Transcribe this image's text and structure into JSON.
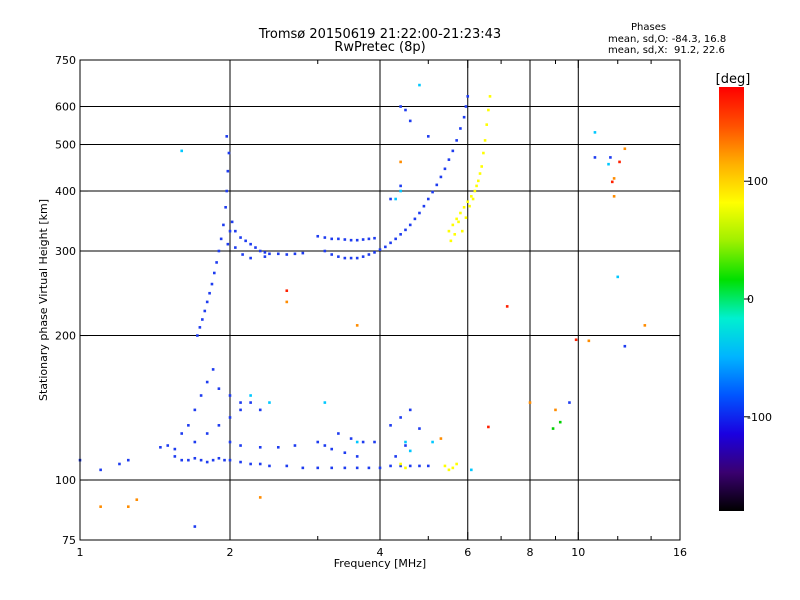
{
  "header": {
    "title_line1": "Tromsø 20150619 21:22:00-21:23:43",
    "title_line2": "RwPretec (8p)",
    "phases_heading": "Phases",
    "stats_o": "mean, sd,O: -84.3, 16.8",
    "stats_x": "mean, sd,X:  91.2, 22.6"
  },
  "chart_data": {
    "type": "scatter",
    "title": "Tromsø 20150619 21:22:00-21:23:43",
    "subtitle": "RwPretec (8p)",
    "xlabel": "Frequency [MHz]",
    "ylabel": "Stationary phase Virtual Height [km]",
    "x_scale": "log",
    "y_scale": "log",
    "xlim": [
      1,
      16
    ],
    "ylim": [
      75,
      750
    ],
    "x_ticks": [
      1,
      2,
      4,
      6,
      8,
      10,
      16
    ],
    "x_tick_labels": [
      "1",
      "2",
      "4",
      "6",
      "8",
      "10",
      "16"
    ],
    "x_minor_ticks": [
      3,
      5,
      7,
      9,
      12,
      14
    ],
    "x_gridlines": [
      2,
      4,
      6,
      8,
      10
    ],
    "y_ticks": [
      75,
      100,
      200,
      300,
      400,
      500,
      600,
      750
    ],
    "y_tick_labels": [
      "75",
      "100",
      "200",
      "300",
      "400",
      "500",
      "600",
      "750"
    ],
    "y_gridlines": [
      100,
      200,
      300,
      400,
      500,
      600
    ],
    "grid": true,
    "colorbar": {
      "label": "[deg]",
      "range": [
        -180,
        180
      ],
      "ticks": [
        100,
        0,
        -100
      ],
      "tick_labels": [
        "100",
        "0",
        "-100"
      ],
      "colormap": [
        "#000000",
        "#3a0070",
        "#1a00e0",
        "#0055ff",
        "#00b4ff",
        "#00f0d0",
        "#00e000",
        "#9ef000",
        "#ffff00",
        "#ffb000",
        "#ff5000",
        "#ff0000"
      ]
    },
    "series": [
      {
        "color": "#1e3cf0",
        "points": [
          [
            1.72,
            200
          ],
          [
            1.74,
            208
          ],
          [
            1.76,
            216
          ],
          [
            1.78,
            225
          ],
          [
            1.8,
            235
          ],
          [
            1.82,
            245
          ],
          [
            1.84,
            256
          ],
          [
            1.86,
            270
          ],
          [
            1.88,
            284
          ],
          [
            1.9,
            300
          ],
          [
            1.92,
            318
          ],
          [
            1.94,
            340
          ],
          [
            1.96,
            370
          ],
          [
            1.97,
            400
          ],
          [
            1.98,
            440
          ],
          [
            1.99,
            480
          ],
          [
            1.97,
            520
          ],
          [
            1.98,
            310
          ],
          [
            2.0,
            330
          ],
          [
            2.02,
            345
          ],
          [
            2.05,
            330
          ],
          [
            2.1,
            320
          ],
          [
            2.15,
            315
          ],
          [
            2.2,
            310
          ],
          [
            2.25,
            305
          ],
          [
            2.3,
            300
          ],
          [
            2.35,
            298
          ],
          [
            2.4,
            296
          ],
          [
            2.5,
            296
          ],
          [
            2.6,
            295
          ],
          [
            2.7,
            296
          ],
          [
            2.8,
            297
          ],
          [
            2.05,
            305
          ],
          [
            2.12,
            295
          ],
          [
            2.2,
            290
          ],
          [
            2.35,
            292
          ],
          [
            3.0,
            322
          ],
          [
            3.1,
            320
          ],
          [
            3.2,
            318
          ],
          [
            3.3,
            318
          ],
          [
            3.4,
            317
          ],
          [
            3.5,
            316
          ],
          [
            3.6,
            316
          ],
          [
            3.7,
            317
          ],
          [
            3.8,
            318
          ],
          [
            3.9,
            319
          ],
          [
            3.1,
            300
          ],
          [
            3.2,
            295
          ],
          [
            3.3,
            292
          ],
          [
            3.4,
            290
          ],
          [
            3.5,
            290
          ],
          [
            3.6,
            290
          ],
          [
            3.7,
            292
          ],
          [
            3.8,
            295
          ],
          [
            3.9,
            298
          ],
          [
            4.0,
            302
          ],
          [
            4.1,
            306
          ],
          [
            4.2,
            312
          ],
          [
            4.3,
            318
          ],
          [
            4.4,
            325
          ],
          [
            4.5,
            332
          ],
          [
            4.6,
            340
          ],
          [
            4.7,
            350
          ],
          [
            4.8,
            360
          ],
          [
            4.9,
            372
          ],
          [
            5.0,
            385
          ],
          [
            5.1,
            398
          ],
          [
            5.2,
            412
          ],
          [
            5.3,
            428
          ],
          [
            5.4,
            445
          ],
          [
            5.5,
            465
          ],
          [
            5.6,
            485
          ],
          [
            5.7,
            510
          ],
          [
            5.8,
            540
          ],
          [
            5.9,
            570
          ],
          [
            5.95,
            600
          ],
          [
            6.0,
            630
          ],
          [
            1.55,
            112
          ],
          [
            1.6,
            110
          ],
          [
            1.65,
            110
          ],
          [
            1.7,
            111
          ],
          [
            1.75,
            110
          ],
          [
            1.8,
            109
          ],
          [
            1.85,
            110
          ],
          [
            1.9,
            111
          ],
          [
            1.95,
            110
          ],
          [
            2.0,
            110
          ],
          [
            2.1,
            109
          ],
          [
            2.2,
            108
          ],
          [
            2.3,
            108
          ],
          [
            2.4,
            107
          ],
          [
            2.6,
            107
          ],
          [
            2.8,
            106
          ],
          [
            3.0,
            106
          ],
          [
            3.2,
            106
          ],
          [
            3.4,
            106
          ],
          [
            3.6,
            106
          ],
          [
            3.8,
            106
          ],
          [
            4.0,
            106
          ],
          [
            4.2,
            107
          ],
          [
            4.4,
            107
          ],
          [
            4.6,
            107
          ],
          [
            4.8,
            107
          ],
          [
            5.0,
            107
          ],
          [
            1.6,
            125
          ],
          [
            1.65,
            130
          ],
          [
            1.7,
            140
          ],
          [
            1.75,
            150
          ],
          [
            1.8,
            160
          ],
          [
            1.85,
            170
          ],
          [
            1.7,
            120
          ],
          [
            1.8,
            125
          ],
          [
            1.9,
            130
          ],
          [
            2.0,
            135
          ],
          [
            2.1,
            140
          ],
          [
            2.2,
            145
          ],
          [
            2.0,
            120
          ],
          [
            2.1,
            118
          ],
          [
            2.3,
            117
          ],
          [
            2.5,
            117
          ],
          [
            2.7,
            118
          ],
          [
            1.9,
            155
          ],
          [
            2.0,
            150
          ],
          [
            2.1,
            145
          ],
          [
            2.3,
            140
          ],
          [
            1.5,
            118
          ],
          [
            1.55,
            116
          ],
          [
            1.45,
            117
          ],
          [
            3.0,
            120
          ],
          [
            3.1,
            118
          ],
          [
            3.2,
            116
          ],
          [
            3.4,
            114
          ],
          [
            3.6,
            112
          ],
          [
            3.3,
            125
          ],
          [
            3.5,
            122
          ],
          [
            3.7,
            120
          ],
          [
            3.9,
            120
          ],
          [
            4.2,
            130
          ],
          [
            4.4,
            135
          ],
          [
            4.6,
            140
          ],
          [
            4.8,
            128
          ],
          [
            4.5,
            118
          ],
          [
            4.3,
            112
          ],
          [
            4.2,
            385
          ],
          [
            4.4,
            410
          ],
          [
            4.5,
            590
          ],
          [
            4.6,
            560
          ],
          [
            5.0,
            520
          ],
          [
            4.4,
            600
          ],
          [
            1.2,
            108
          ],
          [
            1.1,
            105
          ],
          [
            1.0,
            110
          ],
          [
            1.25,
            110
          ],
          [
            9.6,
            145
          ],
          [
            10.8,
            470
          ],
          [
            11.6,
            470
          ],
          [
            12.4,
            190
          ],
          [
            1.7,
            80
          ]
        ]
      },
      {
        "color": "#00c8ff",
        "points": [
          [
            1.6,
            485
          ],
          [
            4.4,
            400
          ],
          [
            4.8,
            665
          ],
          [
            10.8,
            530
          ],
          [
            12.0,
            265
          ],
          [
            11.5,
            455
          ],
          [
            5.1,
            120
          ],
          [
            3.6,
            120
          ],
          [
            2.4,
            145
          ],
          [
            2.2,
            150
          ],
          [
            4.6,
            115
          ],
          [
            6.1,
            105
          ],
          [
            4.5,
            120
          ],
          [
            3.1,
            145
          ],
          [
            4.3,
            385
          ]
        ]
      },
      {
        "color": "#ffff00",
        "points": [
          [
            5.5,
            330
          ],
          [
            5.6,
            340
          ],
          [
            5.7,
            350
          ],
          [
            5.8,
            360
          ],
          [
            5.9,
            370
          ],
          [
            6.0,
            380
          ],
          [
            6.1,
            390
          ],
          [
            6.2,
            400
          ],
          [
            6.3,
            420
          ],
          [
            6.4,
            450
          ],
          [
            6.45,
            480
          ],
          [
            6.5,
            510
          ],
          [
            6.55,
            550
          ],
          [
            6.6,
            590
          ],
          [
            6.65,
            630
          ],
          [
            5.55,
            315
          ],
          [
            5.65,
            325
          ],
          [
            5.75,
            345
          ],
          [
            5.85,
            330
          ],
          [
            5.95,
            352
          ],
          [
            6.05,
            372
          ],
          [
            6.15,
            385
          ],
          [
            6.25,
            410
          ],
          [
            6.35,
            435
          ],
          [
            5.4,
            107
          ],
          [
            5.5,
            105
          ],
          [
            5.6,
            106
          ],
          [
            5.7,
            108
          ],
          [
            4.4,
            108
          ],
          [
            4.5,
            106
          ]
        ]
      },
      {
        "color": "#ff8c00",
        "points": [
          [
            1.1,
            88
          ],
          [
            1.25,
            88
          ],
          [
            1.3,
            91
          ],
          [
            2.6,
            235
          ],
          [
            3.6,
            210
          ],
          [
            4.4,
            460
          ],
          [
            8.0,
            145
          ],
          [
            9.0,
            140
          ],
          [
            11.8,
            425
          ],
          [
            12.4,
            490
          ],
          [
            11.8,
            390
          ],
          [
            13.6,
            210
          ],
          [
            10.5,
            195
          ],
          [
            2.3,
            92
          ],
          [
            5.3,
            122
          ]
        ]
      },
      {
        "color": "#ff2000",
        "points": [
          [
            2.6,
            248
          ],
          [
            7.2,
            230
          ],
          [
            11.7,
            418
          ],
          [
            12.1,
            460
          ],
          [
            9.9,
            196
          ],
          [
            6.6,
            129
          ]
        ]
      },
      {
        "color": "#00d000",
        "points": [
          [
            8.9,
            128
          ],
          [
            9.2,
            132
          ]
        ]
      }
    ]
  }
}
